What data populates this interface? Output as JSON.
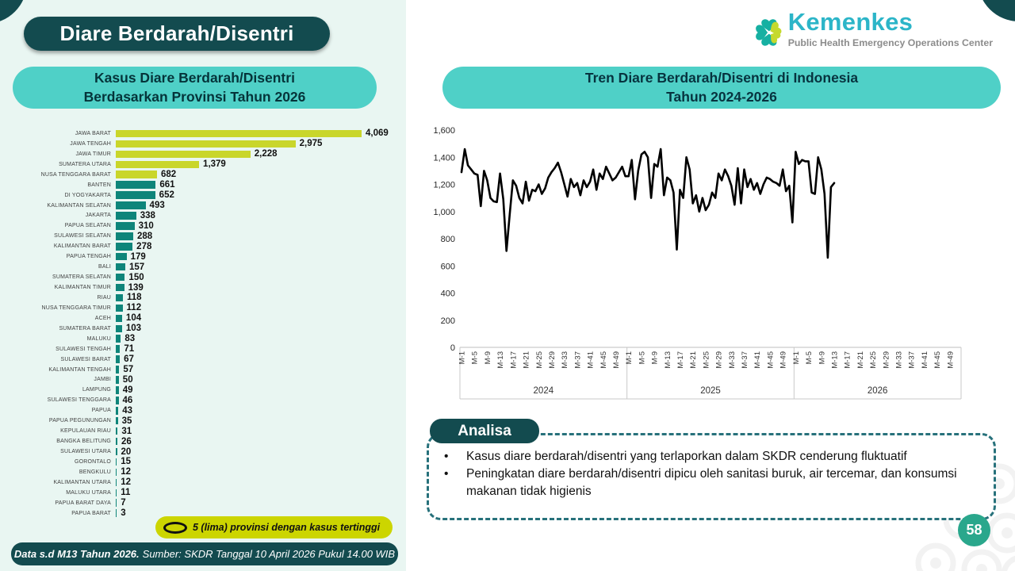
{
  "page": {
    "title": "Diare Berdarah/Disentri",
    "footer_bold": "Data s.d M13 Tahun 2026.",
    "footer_rest": "Sumber: SKDR Tanggal 10 April 2026 Pukul  14.00 WIB",
    "page_number": "58"
  },
  "logo": {
    "name": "Kemenkes",
    "subtitle": "Public Health Emergency Operations Center"
  },
  "left_chart": {
    "title_line1": "Kasus Diare Berdarah/Disentri",
    "title_line2": "Berdasarkan Provinsi Tahun 2026",
    "legend_label": "5 (lima) provinsi dengan kasus tertinggi",
    "chart_data": {
      "type": "bar",
      "orientation": "horizontal",
      "title": "Kasus Diare Berdarah/Disentri Berdasarkan Provinsi Tahun 2026",
      "categories": [
        "JAWA BARAT",
        "JAWA TENGAH",
        "JAWA TIMUR",
        "SUMATERA UTARA",
        "NUSA TENGGARA BARAT",
        "BANTEN",
        "DI YOGYAKARTA",
        "KALIMANTAN SELATAN",
        "JAKARTA",
        "PAPUA SELATAN",
        "SULAWESI SELATAN",
        "KALIMANTAN BARAT",
        "PAPUA TENGAH",
        "BALI",
        "SUMATERA SELATAN",
        "KALIMANTAN TIMUR",
        "RIAU",
        "NUSA TENGGARA TIMUR",
        "ACEH",
        "SUMATERA BARAT",
        "MALUKU",
        "SULAWESI TENGAH",
        "SULAWESI BARAT",
        "KALIMANTAN TENGAH",
        "JAMBI",
        "LAMPUNG",
        "SULAWESI TENGGARA",
        "PAPUA",
        "PAPUA PEGUNUNGAN",
        "KEPULAUAN RIAU",
        "BANGKA BELITUNG",
        "SULAWESI UTARA",
        "GORONTALO",
        "BENGKULU",
        "KALIMANTAN UTARA",
        "MALUKU UTARA",
        "PAPUA BARAT DAYA",
        "PAPUA BARAT"
      ],
      "values": [
        4069,
        2975,
        2228,
        1379,
        682,
        661,
        652,
        493,
        338,
        310,
        288,
        278,
        179,
        157,
        150,
        139,
        118,
        112,
        104,
        103,
        83,
        71,
        67,
        57,
        50,
        49,
        46,
        43,
        35,
        31,
        26,
        20,
        15,
        12,
        12,
        11,
        7,
        3
      ],
      "highlight_top_n": 5,
      "highlight_color": "#c9d62b",
      "bar_color": "#0e857a",
      "xlim": [
        0,
        4069
      ]
    }
  },
  "right_chart": {
    "title_line1": "Tren Diare Berdarah/Disentri di Indonesia",
    "title_line2": "Tahun 2024-2026",
    "chart_data": {
      "type": "line",
      "title": "Tren Diare Berdarah/Disentri di Indonesia Tahun 2024-2026",
      "ylim": [
        0,
        1600
      ],
      "ytick_step": 200,
      "line_color": "#000000",
      "weeks_per_year": 52,
      "years": [
        "2024",
        "2025",
        "2026"
      ],
      "xtick_labels": [
        "M-1",
        "M-5",
        "M-9",
        "M-13",
        "M-17",
        "M-21",
        "M-25",
        "M-29",
        "M-33",
        "M-37",
        "M-41",
        "M-45",
        "M-49"
      ],
      "series": [
        {
          "name": "2024",
          "values": [
            1290,
            1460,
            1340,
            1310,
            1280,
            1270,
            1040,
            1300,
            1230,
            1100,
            1075,
            1070,
            1280,
            1090,
            710,
            980,
            1230,
            1190,
            1100,
            1060,
            1220,
            1080,
            1160,
            1150,
            1200,
            1130,
            1170,
            1250,
            1290,
            1320,
            1360,
            1290,
            1200,
            1110,
            1240,
            1180,
            1210,
            1120,
            1230,
            1180,
            1220,
            1310,
            1160,
            1280,
            1240,
            1330,
            1280,
            1230,
            1250,
            1290,
            1330,
            1260
          ]
        },
        {
          "name": "2025",
          "values": [
            1260,
            1380,
            1090,
            1300,
            1420,
            1440,
            1400,
            1100,
            1350,
            1330,
            1460,
            1120,
            1250,
            1230,
            1140,
            720,
            1160,
            1100,
            1400,
            1310,
            1060,
            1120,
            1000,
            1100,
            1010,
            1050,
            1140,
            1100,
            1280,
            1230,
            1310,
            1260,
            1190,
            1050,
            1320,
            1060,
            1310,
            1180,
            1240,
            1160,
            1210,
            1130,
            1200,
            1250,
            1240,
            1220,
            1210,
            1190,
            1310,
            1150,
            1190,
            920
          ]
        },
        {
          "name": "2026",
          "values": [
            1440,
            1350,
            1380,
            1370,
            1370,
            1140,
            1130,
            1400,
            1310,
            1130,
            660,
            1180,
            1210
          ]
        }
      ]
    }
  },
  "analisa": {
    "header": "Analisa",
    "bullets": [
      "Kasus diare berdarah/disentri yang terlaporkan dalam SKDR cenderung fluktuatif",
      "Peningkatan diare berdarah/disentri dipicu oleh sanitasi buruk, air tercemar, dan konsumsi makanan tidak higienis"
    ]
  }
}
